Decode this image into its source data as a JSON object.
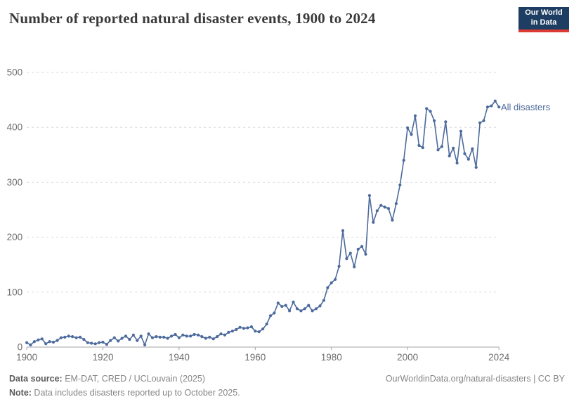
{
  "header": {
    "title": "Number of reported natural disaster events, 1900 to 2024",
    "logo_line1": "Our World",
    "logo_line2": "in Data"
  },
  "chart_data": {
    "type": "line",
    "title": "Number of reported natural disaster events, 1900 to 2024",
    "series_label": "All disasters",
    "xlabel": "",
    "ylabel": "",
    "xlim": [
      1900,
      2024
    ],
    "ylim": [
      0,
      500
    ],
    "x_ticks": [
      1900,
      1920,
      1940,
      1960,
      1980,
      2000,
      2024
    ],
    "y_ticks": [
      0,
      100,
      200,
      300,
      400,
      500
    ],
    "grid": "horizontal-dashed",
    "legend_position": "end-of-line",
    "line_color": "#4C6A9C",
    "x": [
      1900,
      1901,
      1902,
      1903,
      1904,
      1905,
      1906,
      1907,
      1908,
      1909,
      1910,
      1911,
      1912,
      1913,
      1914,
      1915,
      1916,
      1917,
      1918,
      1919,
      1920,
      1921,
      1922,
      1923,
      1924,
      1925,
      1926,
      1927,
      1928,
      1929,
      1930,
      1931,
      1932,
      1933,
      1934,
      1935,
      1936,
      1937,
      1938,
      1939,
      1940,
      1941,
      1942,
      1943,
      1944,
      1945,
      1946,
      1947,
      1948,
      1949,
      1950,
      1951,
      1952,
      1953,
      1954,
      1955,
      1956,
      1957,
      1958,
      1959,
      1960,
      1961,
      1962,
      1963,
      1964,
      1965,
      1966,
      1967,
      1968,
      1969,
      1970,
      1971,
      1972,
      1973,
      1974,
      1975,
      1976,
      1977,
      1978,
      1979,
      1980,
      1981,
      1982,
      1983,
      1984,
      1985,
      1986,
      1987,
      1988,
      1989,
      1990,
      1991,
      1992,
      1993,
      1994,
      1995,
      1996,
      1997,
      1998,
      1999,
      2000,
      2001,
      2002,
      2003,
      2004,
      2005,
      2006,
      2007,
      2008,
      2009,
      2010,
      2011,
      2012,
      2013,
      2014,
      2015,
      2016,
      2017,
      2018,
      2019,
      2020,
      2021,
      2022,
      2023,
      2024
    ],
    "values": [
      8,
      4,
      10,
      13,
      15,
      6,
      10,
      9,
      12,
      17,
      18,
      20,
      19,
      17,
      18,
      14,
      8,
      7,
      6,
      8,
      9,
      5,
      12,
      17,
      11,
      16,
      20,
      14,
      22,
      12,
      20,
      4,
      24,
      17,
      19,
      18,
      18,
      16,
      20,
      23,
      17,
      22,
      20,
      20,
      23,
      22,
      19,
      16,
      18,
      15,
      19,
      24,
      22,
      27,
      29,
      32,
      36,
      34,
      35,
      37,
      29,
      28,
      33,
      42,
      57,
      62,
      80,
      74,
      76,
      66,
      82,
      70,
      66,
      70,
      76,
      66,
      70,
      75,
      85,
      108,
      117,
      123,
      147,
      212,
      161,
      171,
      146,
      178,
      183,
      169,
      276,
      227,
      248,
      258,
      255,
      252,
      231,
      261,
      295,
      340,
      399,
      387,
      421,
      367,
      363,
      434,
      429,
      412,
      359,
      365,
      410,
      348,
      362,
      335,
      393,
      352,
      342,
      361,
      327,
      408,
      412,
      437,
      439,
      448,
      437
    ]
  },
  "footer": {
    "source_label": "Data source:",
    "source_text": " EM-DAT, CRED / UCLouvain (2025)",
    "note_label": "Note:",
    "note_text": " Data includes disasters reported up to October 2025.",
    "link": "OurWorldinData.org/natural-disasters",
    "separator": " | ",
    "license": "CC BY"
  },
  "colors": {
    "line": "#4C6A9C",
    "grid": "#d7d7d7",
    "axis": "#a3a3a3",
    "tick_label": "#6e6e6e",
    "title": "#3a3a3a",
    "logo_bg": "#1d3d63",
    "logo_red": "#dc3a33"
  }
}
